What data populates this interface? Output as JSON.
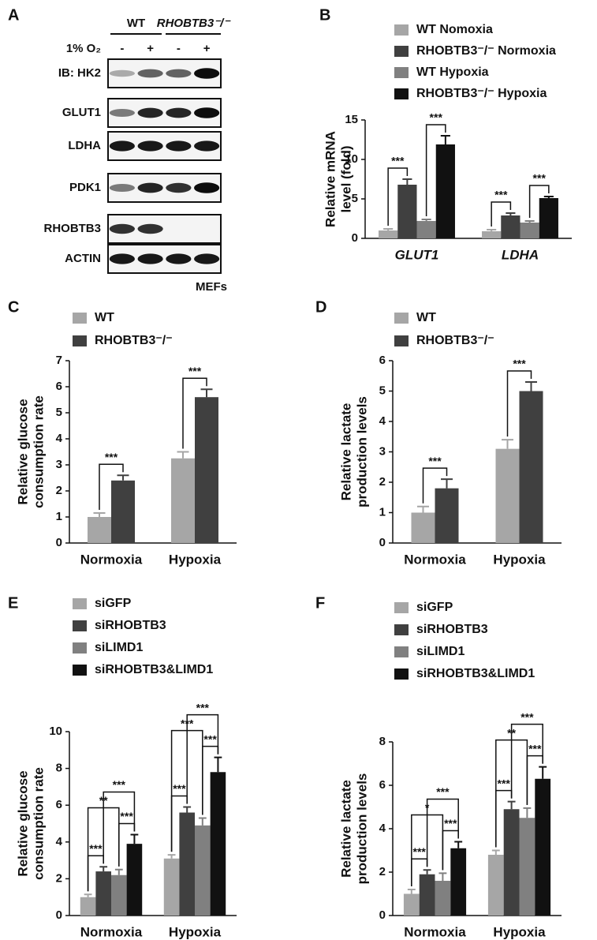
{
  "blot": {
    "panel": "A",
    "groups": [
      "WT",
      "RHOBTB3⁻/⁻"
    ],
    "condition": "1% O₂",
    "lanes": [
      "-",
      "+",
      "-",
      "+"
    ],
    "rows": [
      {
        "label": "IB: HK2",
        "bands": [
          0.3,
          0.6,
          0.6,
          0.95
        ]
      },
      {
        "label": "GLUT1",
        "bands": [
          0.5,
          0.85,
          0.85,
          0.95
        ]
      },
      {
        "label": "LDHA",
        "bands": [
          0.9,
          0.9,
          0.9,
          0.9
        ]
      },
      {
        "label": "PDK1",
        "bands": [
          0.5,
          0.85,
          0.8,
          0.95
        ]
      },
      {
        "label": "RHOBTB3",
        "bands": [
          0.8,
          0.8,
          0,
          0
        ]
      },
      {
        "label": "ACTIN",
        "bands": [
          0.9,
          0.9,
          0.9,
          0.9
        ]
      }
    ],
    "cell_line": "MEFs"
  },
  "chart_data": [
    {
      "type": "bar",
      "panel": "B",
      "ylabel": [
        "Relative mRNA",
        "level (fold)"
      ],
      "categories": [
        "GLUT1",
        "LDHA"
      ],
      "series": [
        {
          "name": "WT Nomoxia",
          "color": "#a6a6a6",
          "values": [
            1.0,
            0.9
          ],
          "errors": [
            0.2,
            0.2
          ]
        },
        {
          "name": "RHOBTB3⁻/⁻ Normoxia",
          "color": "#404040",
          "values": [
            6.8,
            2.9
          ],
          "errors": [
            0.7,
            0.3
          ]
        },
        {
          "name": "WT Hypoxia",
          "color": "#808080",
          "values": [
            2.2,
            2.0
          ],
          "errors": [
            0.2,
            0.2
          ]
        },
        {
          "name": "RHOBTB3⁻/⁻ Hypoxia",
          "color": "#111111",
          "values": [
            11.9,
            5.1
          ],
          "errors": [
            1.1,
            0.2
          ]
        }
      ],
      "ylim": [
        0,
        15
      ],
      "yticks": [
        0,
        5,
        10,
        15
      ],
      "comparisons": [
        {
          "category": 0,
          "series": [
            0,
            1
          ],
          "label": "***"
        },
        {
          "category": 0,
          "series": [
            2,
            3
          ],
          "label": "***"
        },
        {
          "category": 1,
          "series": [
            0,
            1
          ],
          "label": "***"
        },
        {
          "category": 1,
          "series": [
            2,
            3
          ],
          "label": "***"
        }
      ]
    },
    {
      "type": "bar",
      "panel": "C",
      "ylabel": [
        "Relative glucose",
        "consumption rate"
      ],
      "categories": [
        "Normoxia",
        "Hypoxia"
      ],
      "series": [
        {
          "name": "WT",
          "color": "#a6a6a6",
          "values": [
            1.0,
            3.25
          ],
          "errors": [
            0.15,
            0.25
          ]
        },
        {
          "name": "RHOBTB3⁻/⁻",
          "color": "#404040",
          "values": [
            2.4,
            5.6
          ],
          "errors": [
            0.2,
            0.3
          ]
        }
      ],
      "ylim": [
        0,
        7
      ],
      "yticks": [
        0,
        1,
        2,
        3,
        4,
        5,
        6,
        7
      ],
      "comparisons": [
        {
          "category": 0,
          "series": [
            0,
            1
          ],
          "label": "***"
        },
        {
          "category": 1,
          "series": [
            0,
            1
          ],
          "label": "***"
        }
      ]
    },
    {
      "type": "bar",
      "panel": "D",
      "ylabel": [
        "Relative lactate",
        "production levels"
      ],
      "categories": [
        "Normoxia",
        "Hypoxia"
      ],
      "series": [
        {
          "name": "WT",
          "color": "#a6a6a6",
          "values": [
            1.0,
            3.1
          ],
          "errors": [
            0.2,
            0.3
          ]
        },
        {
          "name": "RHOBTB3⁻/⁻",
          "color": "#404040",
          "values": [
            1.8,
            5.0
          ],
          "errors": [
            0.3,
            0.3
          ]
        }
      ],
      "ylim": [
        0,
        6
      ],
      "yticks": [
        0,
        1,
        2,
        3,
        4,
        5,
        6
      ],
      "comparisons": [
        {
          "category": 0,
          "series": [
            0,
            1
          ],
          "label": "***"
        },
        {
          "category": 1,
          "series": [
            0,
            1
          ],
          "label": "***"
        }
      ]
    },
    {
      "type": "bar",
      "panel": "E",
      "ylabel": [
        "Relative glucose",
        "consumption rate"
      ],
      "categories": [
        "Normoxia",
        "Hypoxia"
      ],
      "series": [
        {
          "name": "siGFP",
          "color": "#a6a6a6",
          "values": [
            1.0,
            3.1
          ],
          "errors": [
            0.15,
            0.2
          ]
        },
        {
          "name": "siRHOBTB3",
          "color": "#404040",
          "values": [
            2.4,
            5.6
          ],
          "errors": [
            0.25,
            0.3
          ]
        },
        {
          "name": "siLIMD1",
          "color": "#808080",
          "values": [
            2.2,
            4.9
          ],
          "errors": [
            0.3,
            0.4
          ]
        },
        {
          "name": "siRHOBTB3&LIMD1",
          "color": "#111111",
          "values": [
            3.9,
            7.8
          ],
          "errors": [
            0.5,
            0.8
          ]
        }
      ],
      "ylim": [
        0,
        10
      ],
      "yticks": [
        0,
        2,
        4,
        6,
        8,
        10
      ],
      "comparisons": [
        {
          "category": 0,
          "series": [
            0,
            1
          ],
          "label": "***"
        },
        {
          "category": 0,
          "series": [
            2,
            3
          ],
          "label": "***"
        },
        {
          "category": 0,
          "series": [
            0,
            2
          ],
          "label": "**"
        },
        {
          "category": 0,
          "series": [
            1,
            3
          ],
          "label": "***"
        },
        {
          "category": 1,
          "series": [
            0,
            1
          ],
          "label": "***"
        },
        {
          "category": 1,
          "series": [
            2,
            3
          ],
          "label": "***"
        },
        {
          "category": 1,
          "series": [
            0,
            2
          ],
          "label": "***"
        },
        {
          "category": 1,
          "series": [
            1,
            3
          ],
          "label": "***"
        }
      ]
    },
    {
      "type": "bar",
      "panel": "F",
      "ylabel": [
        "Relative lactate",
        "production levels"
      ],
      "categories": [
        "Normoxia",
        "Hypoxia"
      ],
      "series": [
        {
          "name": "siGFP",
          "color": "#a6a6a6",
          "values": [
            1.0,
            2.8
          ],
          "errors": [
            0.2,
            0.2
          ]
        },
        {
          "name": "siRHOBTB3",
          "color": "#404040",
          "values": [
            1.9,
            4.9
          ],
          "errors": [
            0.2,
            0.35
          ]
        },
        {
          "name": "siLIMD1",
          "color": "#808080",
          "values": [
            1.6,
            4.5
          ],
          "errors": [
            0.35,
            0.45
          ]
        },
        {
          "name": "siRHOBTB3&LIMD1",
          "color": "#111111",
          "values": [
            3.1,
            6.3
          ],
          "errors": [
            0.3,
            0.55
          ]
        }
      ],
      "ylim": [
        0,
        8
      ],
      "yticks": [
        0,
        2,
        4,
        6,
        8
      ],
      "comparisons": [
        {
          "category": 0,
          "series": [
            0,
            1
          ],
          "label": "***"
        },
        {
          "category": 0,
          "series": [
            2,
            3
          ],
          "label": "***"
        },
        {
          "category": 0,
          "series": [
            0,
            2
          ],
          "label": "*"
        },
        {
          "category": 0,
          "series": [
            1,
            3
          ],
          "label": "***"
        },
        {
          "category": 1,
          "series": [
            0,
            1
          ],
          "label": "***"
        },
        {
          "category": 1,
          "series": [
            2,
            3
          ],
          "label": "***"
        },
        {
          "category": 1,
          "series": [
            0,
            2
          ],
          "label": "**"
        },
        {
          "category": 1,
          "series": [
            1,
            3
          ],
          "label": "***"
        }
      ]
    }
  ]
}
